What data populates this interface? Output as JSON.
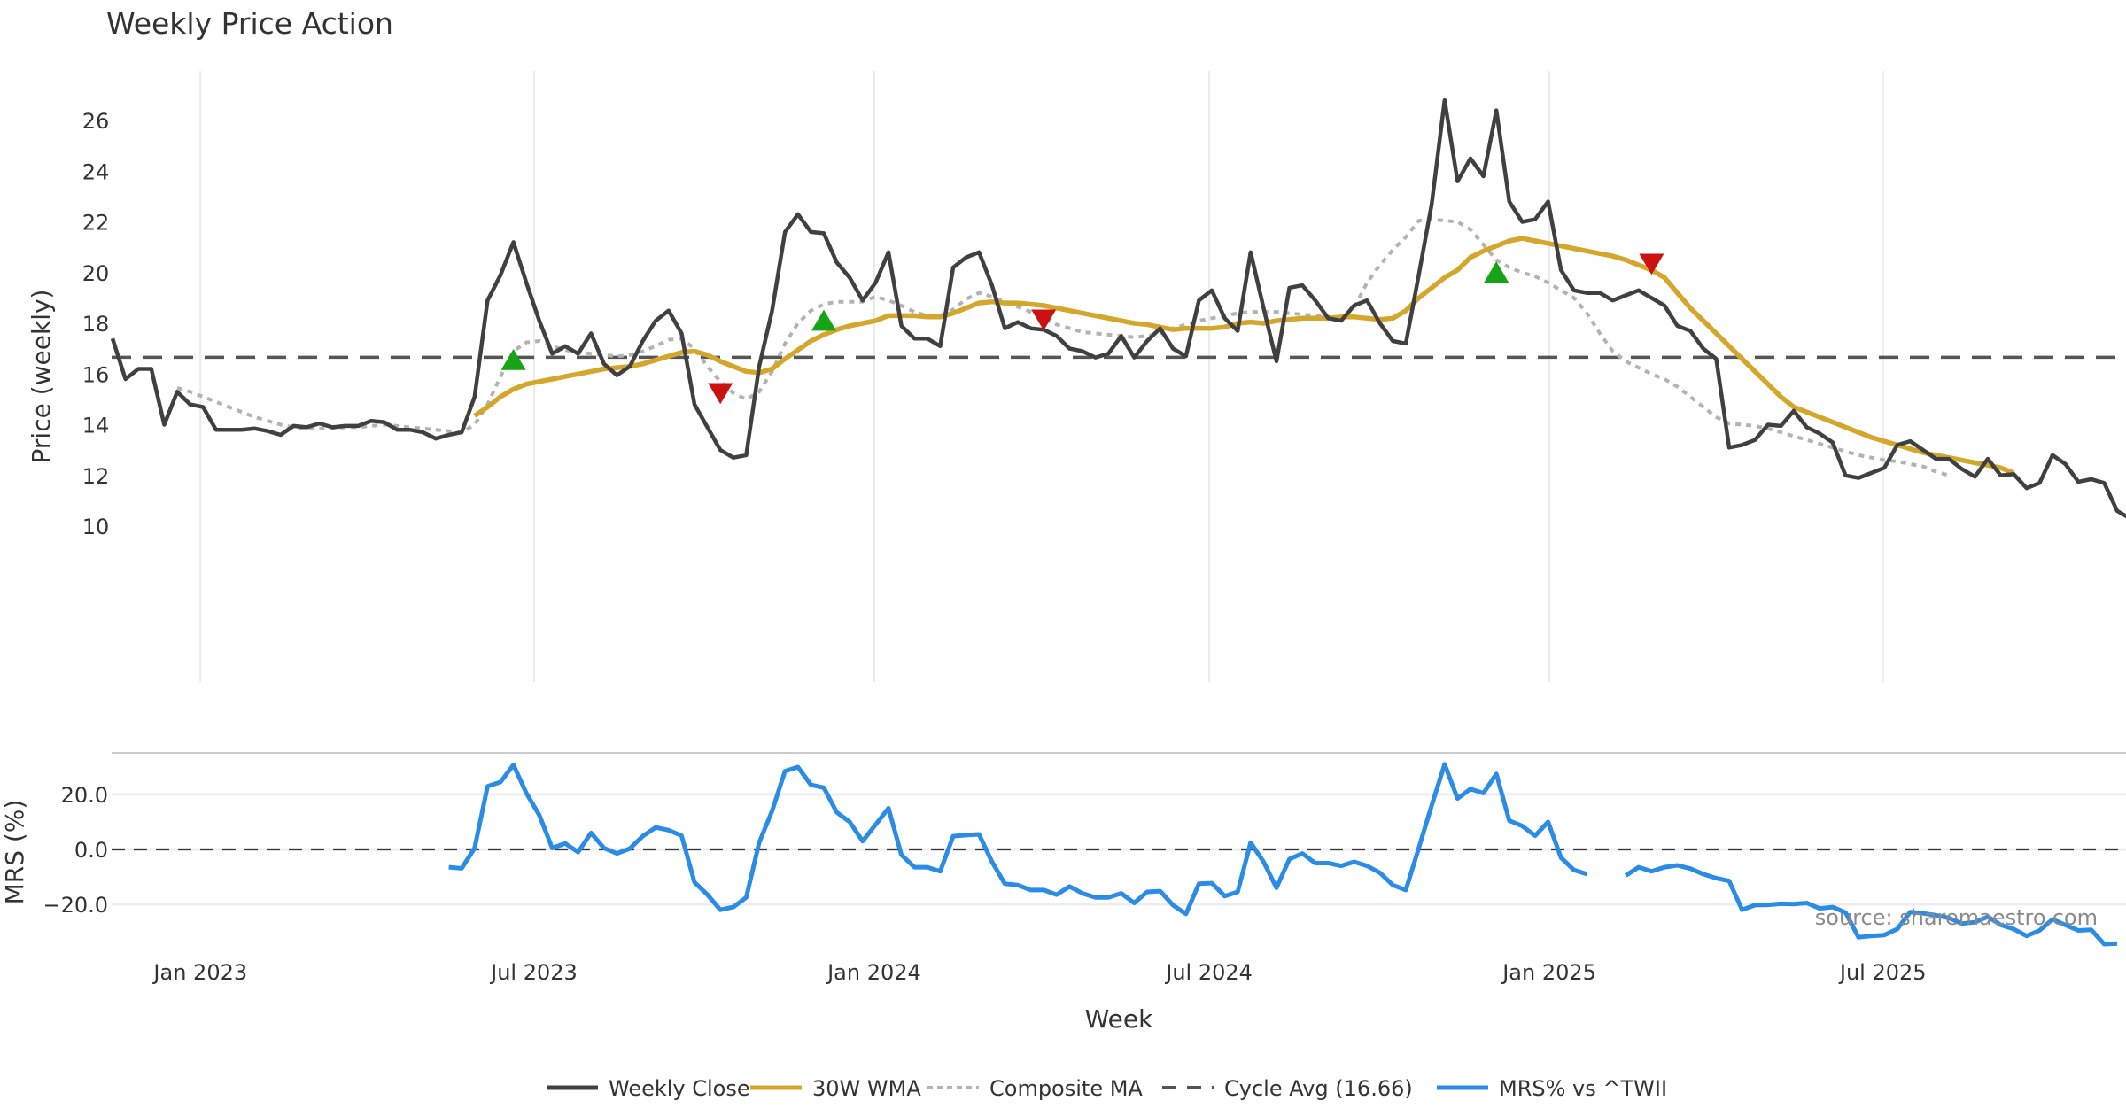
{
  "chart_data": {
    "type": "line",
    "title": "Weekly Price Action",
    "xlabel": "Week",
    "start_week": "2022-11-13",
    "x_ticks": [
      "Jan 2023",
      "Jul 2023",
      "Jan 2024",
      "Jul 2024",
      "Jan 2025",
      "Jul 2025"
    ],
    "x_tick_weeks": [
      6.8,
      32.6,
      58.9,
      84.8,
      111.1,
      136.9
    ],
    "price_panel": {
      "ylabel": "Price (weekly)",
      "ylim": [
        9.4,
        27.7
      ],
      "y_ticks": [
        10,
        12,
        14,
        16,
        18,
        20,
        22,
        24,
        26
      ],
      "grid": "vertical",
      "cycle_avg": 16.66,
      "series": [
        {
          "name": "Weekly Close",
          "color": "#404040",
          "style": "solid",
          "values": [
            17.4,
            15.8,
            16.2,
            16.2,
            14.0,
            15.3,
            14.8,
            14.7,
            13.8,
            13.8,
            13.8,
            13.85,
            13.75,
            13.6,
            13.95,
            13.9,
            14.05,
            13.9,
            13.95,
            13.95,
            14.15,
            14.1,
            13.8,
            13.8,
            13.7,
            13.45,
            13.6,
            13.7,
            15.1,
            18.9,
            19.9,
            21.2,
            19.6,
            18.1,
            16.8,
            17.1,
            16.8,
            17.6,
            16.4,
            15.95,
            16.3,
            17.3,
            18.1,
            18.5,
            17.6,
            14.8,
            13.9,
            13.0,
            12.7,
            12.8,
            16.3,
            18.5,
            21.6,
            22.3,
            21.6,
            21.55,
            20.4,
            19.8,
            18.9,
            19.6,
            20.8,
            17.9,
            17.4,
            17.4,
            17.1,
            20.2,
            20.6,
            20.8,
            19.5,
            17.8,
            18.05,
            17.8,
            17.75,
            17.5,
            17.0,
            16.9,
            16.65,
            16.8,
            17.5,
            16.65,
            17.3,
            17.8,
            17.0,
            16.7,
            18.9,
            19.3,
            18.2,
            17.7,
            20.8,
            18.6,
            16.5,
            19.4,
            19.5,
            18.9,
            18.2,
            18.1,
            18.7,
            18.9,
            18.0,
            17.3,
            17.2,
            19.9,
            22.7,
            26.8,
            23.6,
            24.5,
            23.8,
            26.4,
            22.8,
            22.0,
            22.1,
            22.8,
            20.1,
            19.3,
            19.2,
            19.2,
            18.9,
            19.1,
            19.3,
            19.0,
            18.7,
            17.9,
            17.7,
            17.0,
            16.6,
            13.1,
            13.2,
            13.4,
            14.0,
            13.95,
            14.55,
            13.9,
            13.65,
            13.3,
            12.0,
            11.9,
            12.1,
            12.3,
            13.2,
            13.35,
            13.0,
            12.65,
            12.65,
            12.25,
            11.95,
            12.65,
            12.0,
            12.05,
            11.5,
            11.7,
            12.8,
            12.45,
            11.75,
            11.85,
            11.7,
            10.6,
            10.3
          ]
        },
        {
          "name": "30W WMA",
          "color": "#d4a72c",
          "style": "solid",
          "start_index": 28,
          "values": [
            14.35,
            14.7,
            15.1,
            15.4,
            15.6,
            15.7,
            15.8,
            15.9,
            16.0,
            16.1,
            16.2,
            16.25,
            16.3,
            16.4,
            16.55,
            16.7,
            16.85,
            16.9,
            16.75,
            16.5,
            16.3,
            16.1,
            16.05,
            16.2,
            16.6,
            16.95,
            17.3,
            17.55,
            17.75,
            17.9,
            18.0,
            18.1,
            18.3,
            18.3,
            18.3,
            18.25,
            18.25,
            18.4,
            18.6,
            18.8,
            18.85,
            18.8,
            18.8,
            18.75,
            18.7,
            18.6,
            18.5,
            18.4,
            18.3,
            18.2,
            18.1,
            18.0,
            17.95,
            17.85,
            17.75,
            17.8,
            17.8,
            17.8,
            17.85,
            18.0,
            18.05,
            18.0,
            18.1,
            18.15,
            18.2,
            18.2,
            18.2,
            18.25,
            18.25,
            18.2,
            18.15,
            18.2,
            18.5,
            19.0,
            19.4,
            19.8,
            20.1,
            20.6,
            20.85,
            21.05,
            21.25,
            21.35,
            21.25,
            21.15,
            21.05,
            20.95,
            20.85,
            20.75,
            20.65,
            20.5,
            20.3,
            20.1,
            19.8,
            19.2,
            18.6,
            18.1,
            17.6,
            17.1,
            16.6,
            16.1,
            15.6,
            15.1,
            14.7,
            14.5,
            14.3,
            14.1,
            13.9,
            13.7,
            13.5,
            13.35,
            13.2,
            13.05,
            12.9,
            12.8,
            12.7,
            12.6,
            12.5,
            12.4,
            12.3,
            12.1
          ]
        },
        {
          "name": "Composite MA",
          "color": "#b3b3b3",
          "style": "dotted",
          "start_index": 5,
          "values": [
            15.45,
            15.3,
            15.1,
            14.9,
            14.7,
            14.5,
            14.3,
            14.15,
            14.0,
            13.9,
            13.85,
            13.85,
            13.85,
            13.9,
            13.9,
            13.95,
            14.0,
            13.95,
            13.9,
            13.85,
            13.8,
            13.75,
            13.7,
            14.0,
            14.8,
            15.9,
            16.9,
            17.25,
            17.3,
            17.1,
            16.95,
            16.85,
            16.8,
            16.75,
            16.7,
            16.75,
            16.9,
            17.1,
            17.35,
            17.4,
            17.0,
            16.3,
            15.7,
            15.25,
            15.0,
            15.3,
            16.1,
            17.2,
            18.0,
            18.5,
            18.75,
            18.85,
            18.85,
            18.85,
            19.05,
            18.9,
            18.7,
            18.45,
            18.3,
            18.3,
            18.55,
            18.95,
            19.2,
            19.05,
            18.85,
            18.65,
            18.45,
            18.2,
            17.95,
            17.8,
            17.65,
            17.6,
            17.55,
            17.5,
            17.45,
            17.5,
            17.6,
            17.8,
            17.95,
            18.1,
            18.2,
            18.3,
            18.4,
            18.45,
            18.45,
            18.45,
            18.4,
            18.35,
            18.3,
            18.25,
            18.2,
            18.6,
            19.6,
            20.3,
            20.9,
            21.4,
            22.05,
            22.1,
            22.05,
            22.0,
            21.7,
            21.1,
            20.5,
            20.2,
            20.0,
            19.85,
            19.6,
            19.3,
            19.0,
            18.4,
            17.6,
            16.9,
            16.5,
            16.25,
            16.0,
            15.8,
            15.5,
            15.1,
            14.7,
            14.3,
            14.05,
            14.0,
            13.95,
            13.85,
            13.7,
            13.55,
            13.4,
            13.25,
            13.1,
            12.95,
            12.8,
            12.7,
            12.6,
            12.55,
            12.45,
            12.35,
            12.15,
            12.0
          ]
        }
      ],
      "markers": [
        {
          "type": "buy",
          "symbol": "triangle-up",
          "color": "#17a317",
          "week": 31,
          "value": 16.5
        },
        {
          "type": "sell",
          "symbol": "triangle-down",
          "color": "#cc1111",
          "week": 47,
          "value": 15.3
        },
        {
          "type": "buy",
          "symbol": "triangle-up",
          "color": "#17a317",
          "week": 55,
          "value": 18.05
        },
        {
          "type": "sell",
          "symbol": "triangle-down",
          "color": "#cc1111",
          "week": 72,
          "value": 18.2
        },
        {
          "type": "buy",
          "symbol": "triangle-up",
          "color": "#17a317",
          "week": 107,
          "value": 19.95
        },
        {
          "type": "sell",
          "symbol": "triangle-down",
          "color": "#cc1111",
          "week": 119,
          "value": 20.4
        }
      ]
    },
    "mrs_panel": {
      "ylabel": "MRS (%)",
      "ylim": [
        -30,
        36
      ],
      "y_ticks": [
        -20.0,
        0.0,
        20.0
      ],
      "y_tick_labels": [
        "−20.0",
        "0.0",
        "20.0"
      ],
      "zero_line": 0,
      "series": [
        {
          "name": "MRS% vs ^TWII",
          "color": "#2b8ce6",
          "start_index": 26,
          "values": [
            -6.5,
            -6.9,
            0.5,
            23.0,
            24.5,
            30.8,
            20.5,
            12.5,
            0.5,
            2.2,
            -1.0,
            6.0,
            0.5,
            -1.5,
            0.3,
            4.8,
            8.0,
            7.0,
            5.0,
            -12.0,
            -16.5,
            -22.0,
            -21.0,
            -17.5,
            2.5,
            14.0,
            28.5,
            30.0,
            23.5,
            22.5,
            13.5,
            10.0,
            3.0,
            9.0,
            15.0,
            -2.0,
            -6.5,
            -6.5,
            -8.0,
            4.8,
            5.2,
            5.5,
            -4.5,
            -12.5,
            -13.0,
            -14.8,
            -14.8,
            -16.5,
            -13.5,
            -16.0,
            -17.5,
            -17.5,
            -16.0,
            -19.5,
            -15.5,
            -15.2,
            -20.3,
            -23.5,
            -12.5,
            -12.3,
            -17.0,
            -15.5,
            2.5,
            -4.5,
            -14.0,
            -3.5,
            -1.5,
            -5.0,
            -5.0,
            -6.0,
            -4.5,
            -6.0,
            -8.5,
            -13.0,
            -14.8,
            0.5,
            16.0,
            31.0,
            18.5,
            22.0,
            20.5,
            27.5,
            10.5,
            8.5,
            5.0,
            10.0,
            -3.0,
            -7.5,
            -9.0,
            null,
            null,
            -9.5,
            -6.5,
            -8.0,
            -6.5,
            -5.8,
            -7.0,
            -9.0,
            -10.5,
            -11.5,
            -22.0,
            -20.3,
            -20.2,
            -19.8,
            -19.9,
            -19.5,
            -21.5,
            -21.0,
            -23.0,
            -32.0,
            -31.5,
            -31.2,
            -29.0,
            -22.8,
            -23.3,
            -24.0,
            -25.0,
            -27.0,
            -26.5,
            -24.5,
            -27.5,
            -29.0,
            -31.5,
            -29.5,
            -25.5,
            -27.5,
            -29.5,
            -29.3,
            -34.5,
            -34.3
          ]
        }
      ]
    },
    "legend": {
      "placement": "bottom-center",
      "entries": [
        {
          "label": "Weekly Close",
          "color": "#404040",
          "style": "solid"
        },
        {
          "label": "30W WMA",
          "color": "#d4a72c",
          "style": "solid"
        },
        {
          "label": "Composite MA",
          "color": "#b3b3b3",
          "style": "dotted"
        },
        {
          "label": "Cycle Avg (16.66)",
          "color": "#555555",
          "style": "dashed"
        },
        {
          "label": "MRS% vs ^TWII",
          "color": "#2b8ce6",
          "style": "solid"
        }
      ]
    },
    "annotation": "source: sharemaestro.com"
  }
}
